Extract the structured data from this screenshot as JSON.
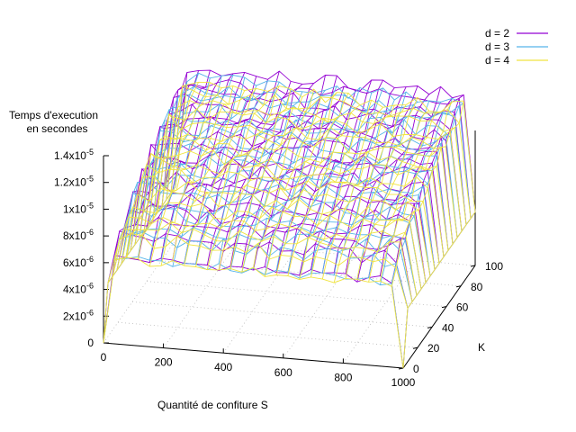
{
  "chart_data": {
    "type": "surface",
    "title": "",
    "xlabel": "Quantité de confiture S",
    "ylabel": "K",
    "zlabel": [
      "Temps d'execution",
      "en secondes"
    ],
    "x_ticks": [
      "0",
      "200",
      "400",
      "600",
      "800",
      "1000"
    ],
    "y_ticks": [
      "0",
      "20",
      "40",
      "60",
      "80",
      "100"
    ],
    "z_ticks": [
      {
        "base": "0",
        "exp": ""
      },
      {
        "base": "2x10",
        "exp": "-6"
      },
      {
        "base": "4x10",
        "exp": "-6"
      },
      {
        "base": "6x10",
        "exp": "-6"
      },
      {
        "base": "8x10",
        "exp": "-6"
      },
      {
        "base": "1x10",
        "exp": "-5"
      },
      {
        "base": "1.2x10",
        "exp": "-5"
      },
      {
        "base": "1.4x10",
        "exp": "-5"
      }
    ],
    "xlim": [
      0,
      1000
    ],
    "ylim": [
      0,
      100
    ],
    "zlim": [
      0,
      1.4e-05
    ],
    "grid": true,
    "legend_position": "top-right",
    "series": [
      {
        "name": "d = 2",
        "color": "#9400d3",
        "z_back": 1.28e-05,
        "z_front": 6.8e-06,
        "z_edge_low": 4e-06
      },
      {
        "name": "d = 3",
        "color": "#56b4e9",
        "z_back": 1.22e-05,
        "z_front": 6.7e-06,
        "z_edge_low": 4e-06
      },
      {
        "name": "d = 4",
        "color": "#f0e442",
        "z_back": 1.18e-05,
        "z_front": 6.6e-06,
        "z_edge_low": 4e-06
      }
    ]
  }
}
